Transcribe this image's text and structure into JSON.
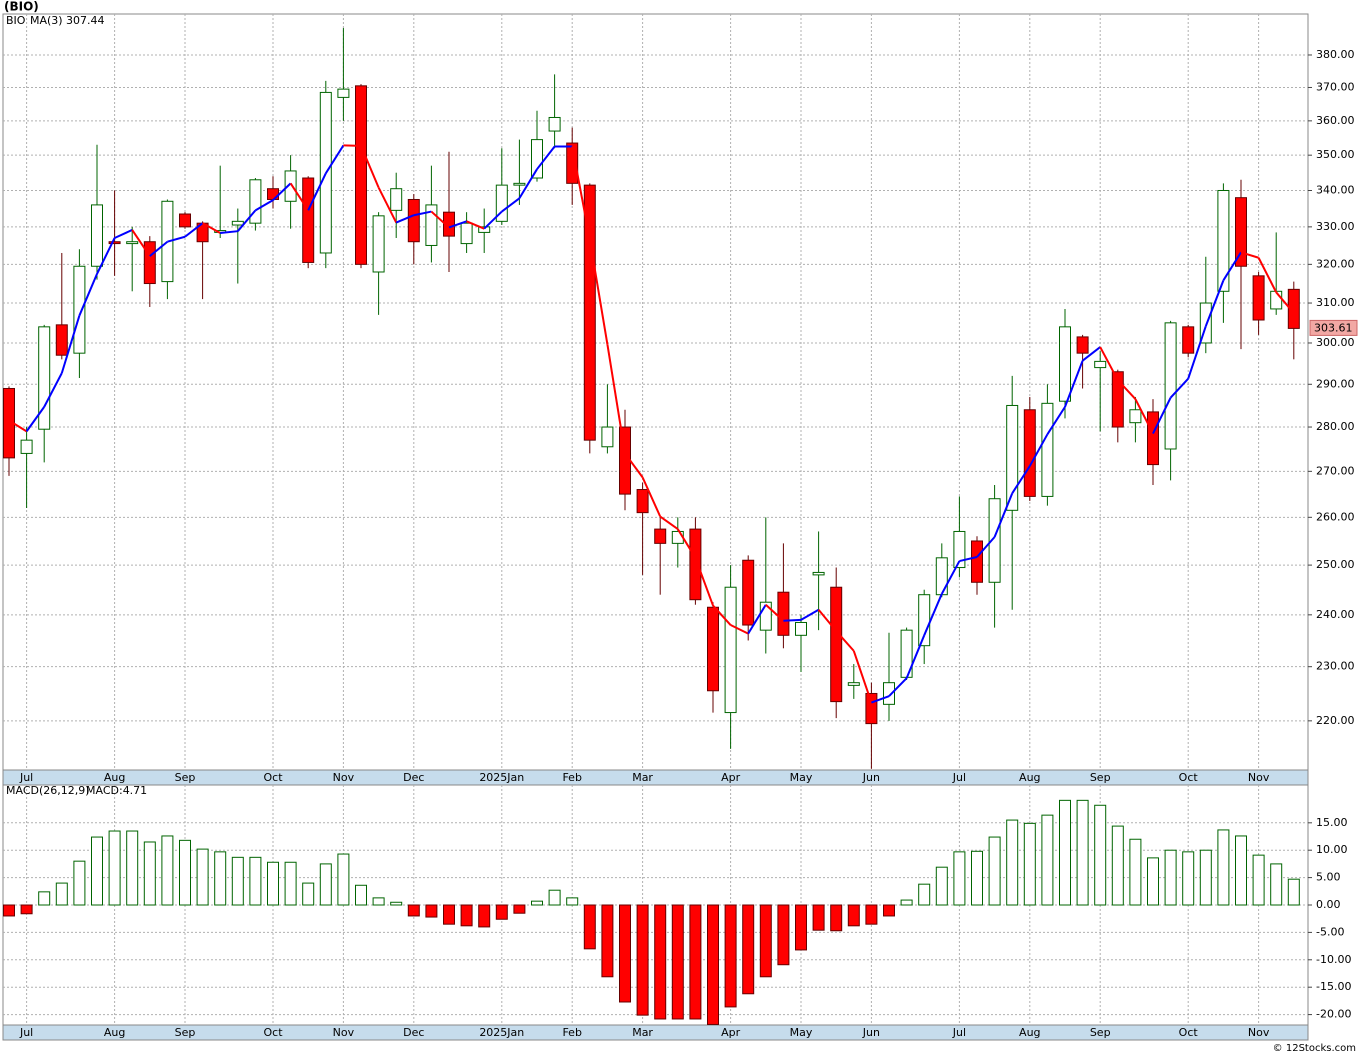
{
  "footer": "© 12Stocks.com",
  "chart_data": [
    {
      "type": "candlestick",
      "title": "(BIO)",
      "symbol": "BIO",
      "ma_name": "MA(3)",
      "log_scale": true,
      "grid": true,
      "up_color": "#006400",
      "down_color": "#ff0000",
      "ma_up_color": "#0000ff",
      "ma_down_color": "#ff0000",
      "categories": [
        null,
        "Jul",
        null,
        null,
        null,
        null,
        "Aug",
        null,
        null,
        null,
        "Sep",
        null,
        null,
        null,
        null,
        "Oct",
        null,
        null,
        null,
        "Nov",
        null,
        null,
        null,
        "Dec",
        null,
        null,
        null,
        null,
        "2025Jan",
        null,
        null,
        null,
        "Feb",
        null,
        null,
        null,
        "Mar",
        null,
        null,
        null,
        null,
        "Apr",
        null,
        null,
        null,
        "May",
        null,
        null,
        null,
        "Jun",
        null,
        null,
        null,
        null,
        "Jul",
        null,
        null,
        null,
        "Aug",
        null,
        null,
        null,
        "Sep",
        null,
        null,
        null,
        null,
        "Oct",
        null,
        null,
        null,
        "Nov",
        null,
        null
      ],
      "open": [
        289,
        274,
        279.5,
        304.5,
        297.5,
        319.5,
        326,
        325.5,
        326,
        315.5,
        333.5,
        331,
        328.5,
        330.5,
        331,
        340.5,
        337,
        343.5,
        323,
        367,
        370.5,
        318,
        334.5,
        337.5,
        325,
        334,
        325.5,
        328.5,
        331.5,
        341.5,
        343.5,
        357,
        353.5,
        341.5,
        275.5,
        280,
        266,
        257.5,
        254.5,
        257.5,
        241.5,
        221.5,
        251,
        237,
        244.5,
        236,
        248,
        245.5,
        226.5,
        225,
        223,
        228,
        234,
        244,
        249.5,
        255,
        246.5,
        261.5,
        284,
        264.5,
        286,
        301.5,
        294,
        293,
        281,
        283.5,
        275,
        304,
        300,
        313,
        338,
        317,
        308.5,
        313.5
      ],
      "high": [
        289.5,
        280,
        304.5,
        323,
        324,
        353,
        340,
        330,
        327.5,
        337.5,
        334,
        331.5,
        347,
        335,
        343.5,
        344,
        350,
        344,
        372,
        388.5,
        371,
        334,
        345,
        339,
        347,
        351,
        334,
        335,
        352,
        354.5,
        363,
        374,
        358,
        342,
        290,
        284,
        267.5,
        260,
        260,
        260,
        242.5,
        250,
        252,
        260,
        254.5,
        240,
        257,
        249.5,
        230.5,
        227,
        236.5,
        237.5,
        245,
        254.5,
        264.5,
        256,
        267,
        292,
        287,
        290,
        308.5,
        302,
        298,
        293.5,
        287,
        286.5,
        305.5,
        304.5,
        322,
        342,
        343,
        318,
        328.5,
        315.5
      ],
      "low": [
        269,
        262,
        272,
        296,
        291.5,
        316,
        317,
        313,
        309,
        311,
        329.5,
        311,
        327,
        315,
        329,
        335,
        329.5,
        319,
        319,
        360,
        319,
        307,
        327,
        320,
        320.5,
        318,
        323,
        323,
        330.5,
        336,
        342.5,
        352,
        336,
        274,
        274,
        261.5,
        248,
        244,
        249.5,
        242,
        221.5,
        215,
        235,
        232.5,
        233.5,
        229,
        237,
        220.5,
        224,
        211.5,
        220,
        227.5,
        230.5,
        243.5,
        247.5,
        244,
        237.5,
        241,
        263.5,
        262.5,
        282,
        289,
        279,
        276.5,
        276.5,
        267,
        268,
        296.5,
        297.5,
        305,
        298.5,
        302,
        307,
        296
      ],
      "close": [
        273,
        277,
        304,
        297,
        319.5,
        336,
        325.5,
        326,
        315,
        337,
        330,
        326,
        329,
        331.5,
        343,
        337.5,
        345.5,
        320.5,
        368.5,
        369.5,
        320,
        333,
        340.5,
        326,
        336,
        327.5,
        331,
        330,
        341.5,
        342,
        354.5,
        361,
        342,
        277,
        280,
        265,
        261,
        254.5,
        257,
        243,
        225.5,
        245.5,
        238,
        242.5,
        236,
        238.5,
        248.5,
        223.5,
        227,
        219.5,
        227,
        237,
        244,
        251.5,
        257,
        246.5,
        264,
        285,
        264.5,
        285.5,
        304,
        297.5,
        295.5,
        280,
        284,
        271.5,
        305,
        297.5,
        310,
        340,
        319.5,
        305.71,
        313,
        303.61
      ],
      "ma": [
        281.5,
        279,
        284.67,
        292.67,
        306.83,
        317.5,
        327,
        329.17,
        322.17,
        326,
        327.33,
        331,
        328.33,
        328.83,
        334.5,
        337.33,
        342,
        334.5,
        344.83,
        352.83,
        352.67,
        340.83,
        331.17,
        333.17,
        334.17,
        329.83,
        331.5,
        329.5,
        334.17,
        337.83,
        346,
        352.5,
        352.5,
        326.67,
        299.67,
        274,
        268.67,
        260.17,
        257.5,
        251.5,
        241.83,
        238,
        236.33,
        242,
        238.83,
        239,
        241,
        236.83,
        233,
        223.33,
        224.5,
        227.83,
        236,
        244.17,
        250.83,
        251.67,
        255.83,
        265.17,
        271.17,
        278.33,
        284.67,
        295.67,
        299,
        291,
        286.5,
        278.5,
        286.83,
        291.33,
        304.17,
        315.83,
        323.17,
        321.74,
        312.74,
        307.44
      ],
      "ylim": [
        211.3,
        393
      ],
      "yticks": [
        {
          "value": 220,
          "label": "220.00"
        },
        {
          "value": 230,
          "label": "230.00"
        },
        {
          "value": 240,
          "label": "240.00"
        },
        {
          "value": 250,
          "label": "250.00"
        },
        {
          "value": 260,
          "label": "260.00"
        },
        {
          "value": 270,
          "label": "270.00"
        },
        {
          "value": 280,
          "label": "280.00"
        },
        {
          "value": 290,
          "label": "290.00"
        },
        {
          "value": 300,
          "label": "300.00"
        },
        {
          "value": 310,
          "label": "310.00"
        },
        {
          "value": 320,
          "label": "320.00"
        },
        {
          "value": 330,
          "label": "330.00"
        },
        {
          "value": 340,
          "label": "340.00"
        },
        {
          "value": 350,
          "label": "350.00"
        },
        {
          "value": 360,
          "label": "360.00"
        },
        {
          "value": 370,
          "label": "370.00"
        },
        {
          "value": 380,
          "label": "380.00"
        }
      ]
    },
    {
      "type": "bar",
      "name": "MACD(26,12,9)",
      "value_prefix": "MACD:",
      "grid": true,
      "up_color": "#006400",
      "down_color": "#ff0000",
      "categories": [
        null,
        "Jul",
        null,
        null,
        null,
        null,
        "Aug",
        null,
        null,
        null,
        "Sep",
        null,
        null,
        null,
        null,
        "Oct",
        null,
        null,
        null,
        "Nov",
        null,
        null,
        null,
        "Dec",
        null,
        null,
        null,
        null,
        "2025Jan",
        null,
        null,
        null,
        "Feb",
        null,
        null,
        null,
        "Mar",
        null,
        null,
        null,
        null,
        "Apr",
        null,
        null,
        null,
        "May",
        null,
        null,
        null,
        "Jun",
        null,
        null,
        null,
        null,
        "Jul",
        null,
        null,
        null,
        "Aug",
        null,
        null,
        null,
        "Sep",
        null,
        null,
        null,
        null,
        "Oct",
        null,
        null,
        null,
        "Nov",
        null,
        null
      ],
      "values": [
        -2.0,
        -1.6,
        2.4,
        4.0,
        8.0,
        12.4,
        13.5,
        13.5,
        11.5,
        12.6,
        11.8,
        10.2,
        9.7,
        8.7,
        8.7,
        7.8,
        7.8,
        4.0,
        7.5,
        9.3,
        3.6,
        1.3,
        0.5,
        -2.0,
        -2.2,
        -3.5,
        -3.8,
        -4.0,
        -2.6,
        -1.5,
        0.7,
        2.7,
        1.3,
        -8.0,
        -13.1,
        -17.7,
        -20.1,
        -20.8,
        -20.8,
        -20.8,
        -21.8,
        -18.6,
        -16.2,
        -13.1,
        -10.9,
        -8.2,
        -4.6,
        -4.7,
        -3.8,
        -3.5,
        -2.0,
        0.9,
        3.8,
        6.9,
        9.7,
        9.8,
        12.4,
        15.5,
        14.9,
        16.4,
        19.1,
        19.1,
        18.2,
        14.4,
        12.0,
        8.6,
        10.0,
        9.7,
        10.0,
        13.7,
        12.6,
        9.1,
        7.5,
        4.71
      ],
      "ylim": [
        -21.9,
        21.9
      ],
      "yticks": [
        {
          "value": -20,
          "label": "-20.00"
        },
        {
          "value": -15,
          "label": "-15.00"
        },
        {
          "value": -10,
          "label": "-10.00"
        },
        {
          "value": -5,
          "label": "-5.00"
        },
        {
          "value": 0,
          "label": "0.00"
        },
        {
          "value": 5,
          "label": "5.00"
        },
        {
          "value": 10,
          "label": "10.00"
        },
        {
          "value": 15,
          "label": "15.00"
        }
      ]
    }
  ]
}
